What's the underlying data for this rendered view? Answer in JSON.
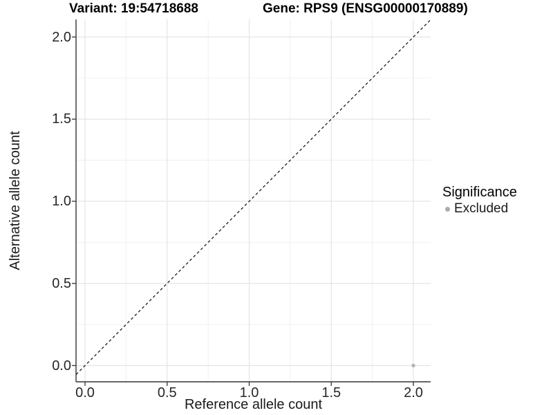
{
  "chart_data": {
    "type": "scatter",
    "titles": {
      "variant": "Variant: 19:54718688",
      "gene": "Gene: RPS9 (ENSG00000170889)"
    },
    "xlabel": "Reference allele count",
    "ylabel": "Alternative allele count",
    "xlim": [
      -0.05,
      2.1
    ],
    "ylim": [
      -0.1,
      2.11
    ],
    "tick_values": [
      0,
      0.5,
      1,
      1.5,
      2
    ],
    "tick_labels": [
      "0.0",
      "0.5",
      "1.0",
      "1.5",
      "2.0"
    ],
    "minor_grid_values": [
      0.25,
      0.75,
      1.25,
      1.75
    ],
    "grid": true,
    "legend_position": "right",
    "reference_line": {
      "type": "identity y=x",
      "style": "dashed",
      "color": "#1a1a1a"
    },
    "series": [
      {
        "name": "Excluded",
        "color": "#b3b3b3",
        "points": [
          {
            "x": 2.0,
            "y": 0.0
          }
        ]
      }
    ],
    "legend": {
      "title": "Significance",
      "items": [
        {
          "label": "Excluded",
          "color": "#ababab"
        }
      ]
    },
    "style": {
      "axis_color": "#333333",
      "grid_major": "#e4e4e4",
      "grid_minor": "#f0f0f0",
      "background": "#ffffff"
    }
  }
}
